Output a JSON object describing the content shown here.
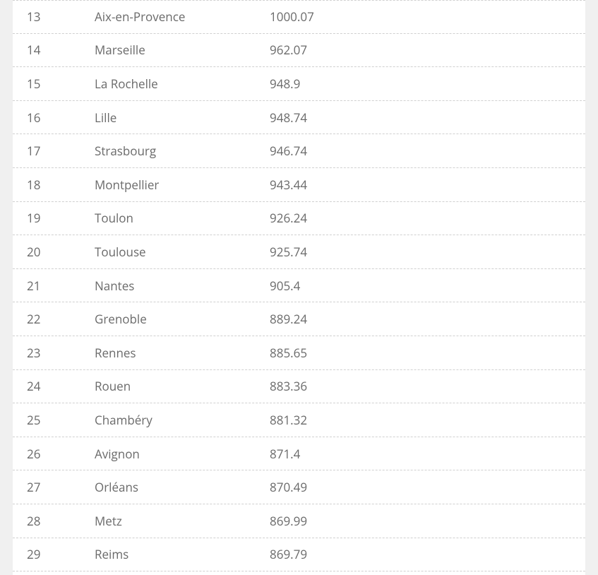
{
  "table": {
    "rows": [
      {
        "rank": "13",
        "city": "Aix-en-Provence",
        "value": "1000.07"
      },
      {
        "rank": "14",
        "city": "Marseille",
        "value": "962.07"
      },
      {
        "rank": "15",
        "city": "La Rochelle",
        "value": "948.9"
      },
      {
        "rank": "16",
        "city": "Lille",
        "value": "948.74"
      },
      {
        "rank": "17",
        "city": "Strasbourg",
        "value": "946.74"
      },
      {
        "rank": "18",
        "city": "Montpellier",
        "value": "943.44"
      },
      {
        "rank": "19",
        "city": "Toulon",
        "value": "926.24"
      },
      {
        "rank": "20",
        "city": "Toulouse",
        "value": "925.74"
      },
      {
        "rank": "21",
        "city": "Nantes",
        "value": "905.4"
      },
      {
        "rank": "22",
        "city": "Grenoble",
        "value": "889.24"
      },
      {
        "rank": "23",
        "city": "Rennes",
        "value": "885.65"
      },
      {
        "rank": "24",
        "city": "Rouen",
        "value": "883.36"
      },
      {
        "rank": "25",
        "city": "Chambéry",
        "value": "881.32"
      },
      {
        "rank": "26",
        "city": "Avignon",
        "value": "871.4"
      },
      {
        "rank": "27",
        "city": "Orléans",
        "value": "870.49"
      },
      {
        "rank": "28",
        "city": "Metz",
        "value": "869.99"
      },
      {
        "rank": "29",
        "city": "Reims",
        "value": "869.79"
      }
    ]
  }
}
